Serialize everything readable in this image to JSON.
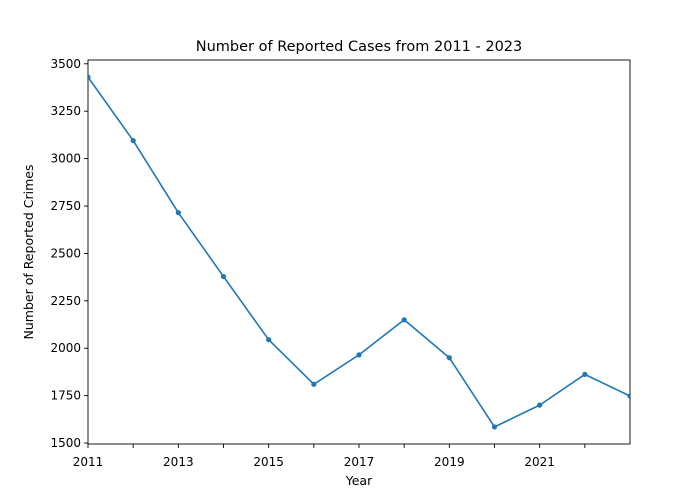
{
  "chart_data": {
    "type": "line",
    "title": "Number of Reported Cases from 2011 - 2023",
    "xlabel": "Year",
    "ylabel": "Number of Reported Crimes",
    "xlim": [
      2011,
      2023
    ],
    "ylim": [
      1495,
      3520
    ],
    "x_tick_values": [
      2011,
      2012,
      2013,
      2014,
      2015,
      2016,
      2017,
      2018,
      2019,
      2020,
      2021,
      2022
    ],
    "x_tick_labels": [
      "2011",
      "",
      "2013",
      "",
      "2015",
      "",
      "2017",
      "",
      "2019",
      "",
      "2021",
      ""
    ],
    "y_tick_values": [
      1500,
      1750,
      2000,
      2250,
      2500,
      2750,
      3000,
      3250,
      3500
    ],
    "y_tick_labels": [
      "1500",
      "1750",
      "2000",
      "2250",
      "2500",
      "2750",
      "3000",
      "3250",
      "3500"
    ],
    "grid": false,
    "marker": "dot",
    "series": [
      {
        "color": "#1f77b4",
        "x": [
          2011,
          2012,
          2013,
          2014,
          2015,
          2016,
          2017,
          2018,
          2019,
          2020,
          2021,
          2022,
          2023
        ],
        "values": [
          3430,
          3095,
          2715,
          2378,
          2045,
          1810,
          1965,
          2150,
          1950,
          1585,
          1700,
          1862,
          1748
        ]
      }
    ]
  }
}
